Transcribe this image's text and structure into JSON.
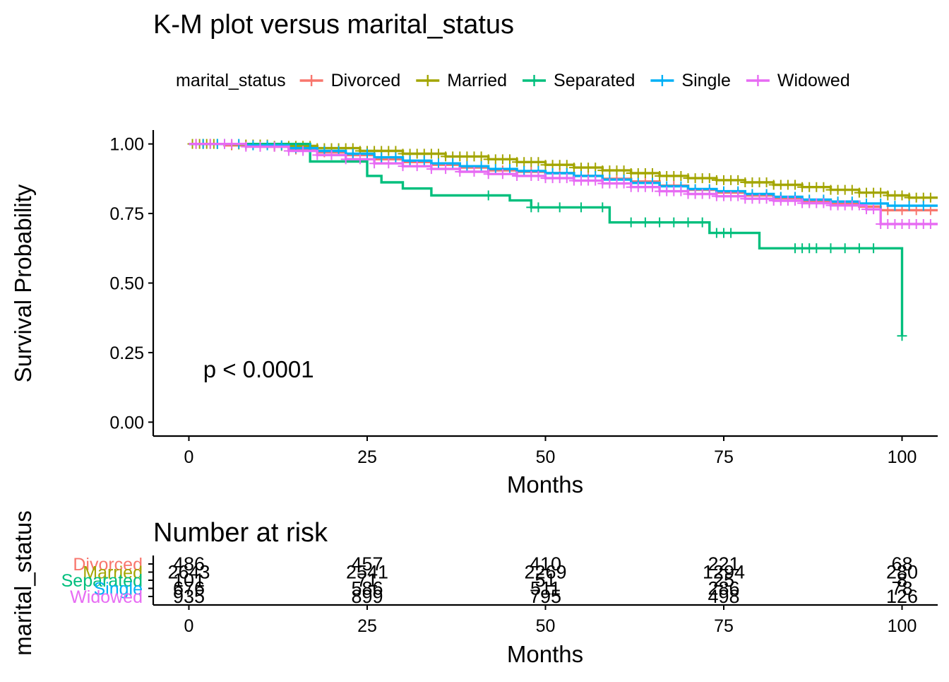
{
  "chart_data": [
    {
      "type": "line",
      "subtype": "kaplan-meier",
      "title": "K-M plot versus marital_status",
      "xlabel": "Months",
      "ylabel": "Survival Probability",
      "xlim": [
        -5,
        105
      ],
      "ylim": [
        -0.05,
        1.05
      ],
      "xticks": [
        "0",
        "25",
        "50",
        "75",
        "100"
      ],
      "yticks": [
        "0.00",
        "0.25",
        "0.50",
        "0.75",
        "1.00"
      ],
      "legend": {
        "title": "marital_status",
        "position": "top"
      },
      "annotation": "p < 0.0001",
      "grid": false,
      "series": [
        {
          "name": "Divorced",
          "color": "#F8766D",
          "steps": [
            [
              0,
              1.0
            ],
            [
              5,
              0.995
            ],
            [
              10,
              0.99
            ],
            [
              14,
              0.98
            ],
            [
              18,
              0.97
            ],
            [
              22,
              0.96
            ],
            [
              26,
              0.945
            ],
            [
              30,
              0.935
            ],
            [
              34,
              0.925
            ],
            [
              38,
              0.915
            ],
            [
              42,
              0.905
            ],
            [
              46,
              0.9
            ],
            [
              50,
              0.895
            ],
            [
              54,
              0.885
            ],
            [
              58,
              0.875
            ],
            [
              62,
              0.865
            ],
            [
              66,
              0.85
            ],
            [
              70,
              0.835
            ],
            [
              74,
              0.825
            ],
            [
              78,
              0.815
            ],
            [
              82,
              0.805
            ],
            [
              86,
              0.795
            ],
            [
              90,
              0.785
            ],
            [
              94,
              0.775
            ],
            [
              97,
              0.762
            ],
            [
              105,
              0.762
            ]
          ],
          "censor": [
            1,
            2,
            3,
            4,
            6,
            8,
            10,
            12,
            15,
            19,
            23,
            27,
            31,
            35,
            39,
            44,
            48,
            52,
            56,
            60,
            64,
            68,
            71,
            73,
            75,
            77,
            79,
            81,
            83,
            85,
            87,
            89,
            91,
            93,
            95,
            98,
            100,
            102,
            104
          ]
        },
        {
          "name": "Married",
          "color": "#A3A500",
          "steps": [
            [
              0,
              1.0
            ],
            [
              6,
              0.998
            ],
            [
              12,
              0.993
            ],
            [
              18,
              0.985
            ],
            [
              24,
              0.975
            ],
            [
              30,
              0.965
            ],
            [
              36,
              0.955
            ],
            [
              42,
              0.945
            ],
            [
              46,
              0.935
            ],
            [
              50,
              0.925
            ],
            [
              54,
              0.915
            ],
            [
              58,
              0.905
            ],
            [
              62,
              0.895
            ],
            [
              66,
              0.885
            ],
            [
              70,
              0.877
            ],
            [
              74,
              0.87
            ],
            [
              78,
              0.862
            ],
            [
              82,
              0.853
            ],
            [
              86,
              0.845
            ],
            [
              90,
              0.835
            ],
            [
              94,
              0.825
            ],
            [
              98,
              0.815
            ],
            [
              101,
              0.807
            ],
            [
              105,
              0.807
            ]
          ],
          "censor": [
            0.5,
            1,
            1.5,
            2,
            2.5,
            3,
            3.5,
            4,
            5,
            6,
            7,
            8,
            9,
            10,
            11,
            12,
            13,
            14,
            15,
            16,
            17,
            18,
            19,
            20,
            21,
            22,
            23,
            24,
            25,
            26,
            27,
            28,
            29,
            30,
            31,
            32,
            33,
            34,
            35,
            36,
            37,
            38,
            39,
            40,
            41,
            42,
            43,
            44,
            45,
            46,
            47,
            48,
            49,
            50,
            51,
            52,
            53,
            54,
            55,
            56,
            57,
            58,
            59,
            60,
            61,
            62,
            63,
            64,
            65,
            66,
            67,
            68,
            69,
            70,
            71,
            72,
            73,
            74,
            75,
            76,
            77,
            78,
            79,
            80,
            81,
            82,
            83,
            84,
            85,
            86,
            87,
            88,
            89,
            90,
            91,
            92,
            93,
            94,
            95,
            96,
            97,
            98,
            99,
            100,
            101,
            102,
            103,
            104
          ]
        },
        {
          "name": "Separated",
          "color": "#00BF7D",
          "steps": [
            [
              0,
              1.0
            ],
            [
              17,
              0.937
            ],
            [
              25,
              0.885
            ],
            [
              27,
              0.862
            ],
            [
              30,
              0.84
            ],
            [
              34,
              0.815
            ],
            [
              45,
              0.797
            ],
            [
              48,
              0.772
            ],
            [
              59,
              0.718
            ],
            [
              73,
              0.68
            ],
            [
              80,
              0.625
            ],
            [
              100,
              0.31
            ]
          ],
          "censor": [
            4,
            42,
            48,
            49,
            52,
            55,
            58,
            62,
            64,
            66,
            68,
            70,
            72,
            74,
            75,
            76,
            85,
            86,
            87,
            88,
            90,
            92,
            94,
            96,
            100
          ]
        },
        {
          "name": "Single",
          "color": "#00B0F6",
          "steps": [
            [
              0,
              1.0
            ],
            [
              8,
              0.995
            ],
            [
              14,
              0.985
            ],
            [
              18,
              0.975
            ],
            [
              22,
              0.965
            ],
            [
              26,
              0.952
            ],
            [
              30,
              0.94
            ],
            [
              34,
              0.93
            ],
            [
              38,
              0.92
            ],
            [
              42,
              0.91
            ],
            [
              46,
              0.903
            ],
            [
              50,
              0.895
            ],
            [
              54,
              0.885
            ],
            [
              58,
              0.872
            ],
            [
              62,
              0.86
            ],
            [
              66,
              0.848
            ],
            [
              70,
              0.838
            ],
            [
              74,
              0.83
            ],
            [
              78,
              0.82
            ],
            [
              82,
              0.81
            ],
            [
              86,
              0.8
            ],
            [
              90,
              0.793
            ],
            [
              94,
              0.786
            ],
            [
              98,
              0.778
            ],
            [
              105,
              0.778
            ]
          ],
          "censor": [
            2,
            4,
            5,
            7,
            9,
            11,
            13,
            15,
            17,
            19,
            21,
            23,
            25,
            27,
            29,
            31,
            33,
            35,
            37,
            39,
            41,
            43,
            45,
            47,
            49,
            51,
            53,
            55,
            57,
            59,
            61,
            63,
            65,
            67,
            69,
            71,
            73,
            75,
            77,
            79,
            81,
            83,
            85,
            87,
            89,
            91,
            93,
            95,
            97,
            99,
            101,
            103
          ]
        },
        {
          "name": "Widowed",
          "color": "#E76BF3",
          "steps": [
            [
              0,
              1.0
            ],
            [
              8,
              0.99
            ],
            [
              14,
              0.975
            ],
            [
              18,
              0.96
            ],
            [
              22,
              0.945
            ],
            [
              26,
              0.93
            ],
            [
              30,
              0.92
            ],
            [
              34,
              0.91
            ],
            [
              38,
              0.9
            ],
            [
              42,
              0.892
            ],
            [
              46,
              0.885
            ],
            [
              50,
              0.877
            ],
            [
              54,
              0.868
            ],
            [
              58,
              0.858
            ],
            [
              62,
              0.845
            ],
            [
              66,
              0.83
            ],
            [
              70,
              0.82
            ],
            [
              74,
              0.812
            ],
            [
              78,
              0.803
            ],
            [
              82,
              0.796
            ],
            [
              86,
              0.787
            ],
            [
              90,
              0.779
            ],
            [
              95,
              0.765
            ],
            [
              97,
              0.712
            ],
            [
              105,
              0.712
            ]
          ],
          "censor": [
            1,
            3,
            5,
            6,
            8,
            10,
            12,
            14,
            16,
            18,
            20,
            22,
            24,
            26,
            28,
            30,
            32,
            34,
            36,
            38,
            40,
            42,
            44,
            46,
            48,
            49,
            50,
            51,
            52,
            53,
            54,
            55,
            56,
            57,
            58,
            59,
            60,
            61,
            62,
            63,
            64,
            65,
            66,
            67,
            68,
            69,
            70,
            71,
            72,
            73,
            74,
            75,
            76,
            77,
            78,
            79,
            80,
            81,
            82,
            83,
            84,
            85,
            86,
            87,
            88,
            89,
            90,
            91,
            92,
            93,
            94,
            95,
            96,
            97,
            98,
            99,
            100,
            101,
            102,
            103,
            104
          ]
        }
      ]
    },
    {
      "type": "table",
      "title": "Number at risk",
      "xlabel": "Months",
      "ylabel": "marital_status",
      "xlim": [
        -5,
        105
      ],
      "times": [
        0,
        25,
        50,
        75,
        100
      ],
      "xticks": [
        "0",
        "25",
        "50",
        "75",
        "100"
      ],
      "rows": [
        {
          "name": "Divorced",
          "color": "#F8766D",
          "values": [
            "486",
            "457",
            "410",
            "221",
            "68"
          ]
        },
        {
          "name": "Married",
          "color": "#A3A500",
          "values": [
            "2643",
            "2541",
            "2269",
            "1294",
            "280"
          ]
        },
        {
          "name": "Separated",
          "color": "#00BF7D",
          "values": [
            "101",
            "71",
            "51",
            "25",
            "8"
          ]
        },
        {
          "name": "Single",
          "color": "#00B0F6",
          "values": [
            "676",
            "586",
            "511",
            "286",
            "78"
          ]
        },
        {
          "name": "Widowed",
          "color": "#E76BF3",
          "values": [
            "935",
            "899",
            "795",
            "498",
            "126"
          ]
        }
      ]
    }
  ]
}
